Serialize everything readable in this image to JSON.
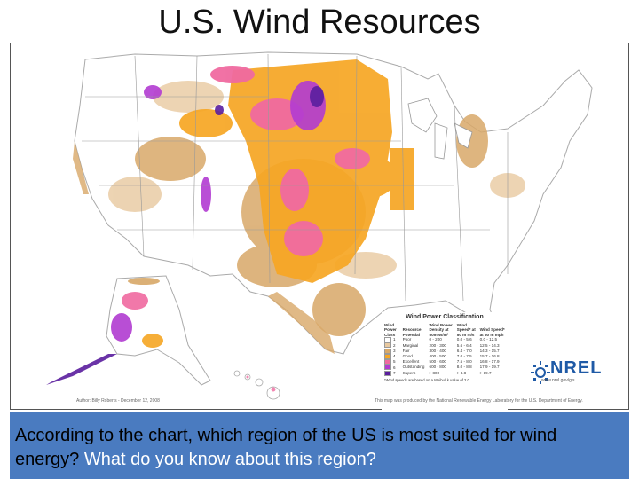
{
  "slide": {
    "title": "U.S.  Wind Resources",
    "question_part1": "According to the chart, which region of the US is most suited for wind energy?",
    "question_part2": " What do you know about  this region?"
  },
  "map": {
    "legend": {
      "title": "Wind Power Classification",
      "headers": [
        "Wind Power Class",
        "Resource Potential",
        "Wind Power Density at 50m W/m²",
        "Wind Speed* at 50 m m/s",
        "Wind Speed* at 50 m mph"
      ],
      "rows": [
        {
          "cls": "1",
          "potential": "Poor",
          "density": "0 - 200",
          "ms": "0.0 - 5.6",
          "mph": "0.0 - 12.5",
          "color": "#ffffff"
        },
        {
          "cls": "2",
          "potential": "Marginal",
          "density": "200 - 300",
          "ms": "5.6 - 6.4",
          "mph": "12.5 - 14.3",
          "color": "#e8c9a0"
        },
        {
          "cls": "3",
          "potential": "Fair",
          "density": "300 - 400",
          "ms": "6.4 - 7.0",
          "mph": "14.3 - 15.7",
          "color": "#d8a868"
        },
        {
          "cls": "4",
          "potential": "Good",
          "density": "400 - 500",
          "ms": "7.0 - 7.5",
          "mph": "15.7 - 16.8",
          "color": "#f6a623"
        },
        {
          "cls": "5",
          "potential": "Excellent",
          "density": "500 - 600",
          "ms": "7.5 - 8.0",
          "mph": "16.8 - 17.9",
          "color": "#f06aa0"
        },
        {
          "cls": "6",
          "potential": "Outstanding",
          "density": "600 - 800",
          "ms": "8.0 - 8.8",
          "mph": "17.9 - 19.7",
          "color": "#b13bd1"
        },
        {
          "cls": "7",
          "potential": "Superb",
          "density": "> 800",
          "ms": "> 8.8",
          "mph": "> 19.7",
          "color": "#5a1e9e"
        }
      ],
      "note": "*Wind speeds are based on a Weibull k value of 2.0"
    },
    "nrel_logo": "NREL",
    "nrel_url": "www.nrel.gov/gis",
    "author": "Author: Billy Roberts - December 12, 2008",
    "credit": "This map was produced by the National Renewable Energy Laboratory for the U.S. Department of Energy.",
    "colors": {
      "land": "#ffffff",
      "state_border": "#999999",
      "marginal": "#e8c9a0",
      "fair": "#d8a868",
      "good": "#f6a623",
      "excellent": "#f06aa0",
      "outstanding": "#b13bd1",
      "superb": "#5a1e9e"
    }
  },
  "colors": {
    "question_box": "#4a7bc0",
    "question_text_dark": "#000000",
    "question_text_light": "#ffffff"
  }
}
